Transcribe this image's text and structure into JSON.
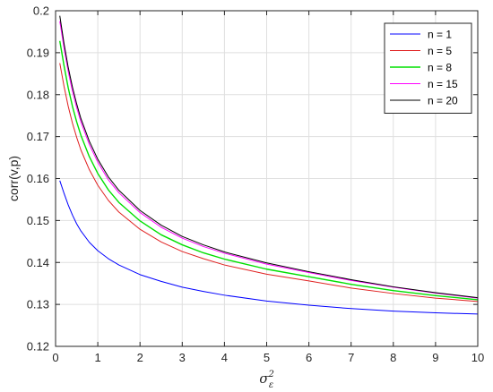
{
  "chart_data": {
    "type": "line",
    "xlabel": "σ",
    "xlabel_superscript": "2",
    "xlabel_subscript": "ε",
    "ylabel": "corr(v,p)",
    "xlim": [
      0,
      10
    ],
    "ylim": [
      0.12,
      0.2
    ],
    "x_ticks": [
      "0",
      "1",
      "2",
      "3",
      "4",
      "5",
      "6",
      "7",
      "8",
      "9",
      "10"
    ],
    "y_ticks": [
      "0.12",
      "0.13",
      "0.14",
      "0.15",
      "0.16",
      "0.17",
      "0.18",
      "0.19",
      "0.2"
    ],
    "grid": true,
    "legend_position": "top-right",
    "series": [
      {
        "name": "n = 1",
        "color": "#0000ff",
        "line_width": 1,
        "x": [
          0.1,
          0.2,
          0.3,
          0.4,
          0.5,
          0.6,
          0.8,
          1.0,
          1.25,
          1.5,
          2,
          2.5,
          3,
          3.5,
          4,
          5,
          6,
          7,
          8,
          9,
          10
        ],
        "y": [
          0.1595,
          0.1565,
          0.1537,
          0.1513,
          0.1492,
          0.1475,
          0.1448,
          0.1428,
          0.1409,
          0.1394,
          0.1371,
          0.1355,
          0.1341,
          0.1331,
          0.1322,
          0.1308,
          0.1298,
          0.129,
          0.1284,
          0.128,
          0.1277
        ]
      },
      {
        "name": "n = 5",
        "color": "#e02020",
        "line_width": 1,
        "x": [
          0.1,
          0.2,
          0.3,
          0.4,
          0.5,
          0.6,
          0.8,
          1.0,
          1.25,
          1.5,
          2,
          2.5,
          3,
          3.5,
          4,
          5,
          6,
          7,
          8,
          9,
          10
        ],
        "y": [
          0.1875,
          0.182,
          0.1772,
          0.1732,
          0.1698,
          0.1668,
          0.1621,
          0.1584,
          0.1548,
          0.152,
          0.1479,
          0.1449,
          0.1426,
          0.1409,
          0.1394,
          0.1372,
          0.1356,
          0.1339,
          0.1326,
          0.1315,
          0.1307
        ]
      },
      {
        "name": "n = 8",
        "color": "#00e000",
        "line_width": 1.4,
        "x": [
          0.1,
          0.2,
          0.3,
          0.4,
          0.5,
          0.6,
          0.8,
          1.0,
          1.25,
          1.5,
          2,
          2.5,
          3,
          3.5,
          4,
          5,
          6,
          7,
          8,
          9,
          10
        ],
        "y": [
          0.1928,
          0.1869,
          0.1816,
          0.1772,
          0.1735,
          0.1703,
          0.1652,
          0.1612,
          0.1573,
          0.1543,
          0.1499,
          0.1466,
          0.1442,
          0.1423,
          0.1408,
          0.1384,
          0.1366,
          0.1348,
          0.1333,
          0.1321,
          0.1311
        ]
      },
      {
        "name": "n = 15",
        "color": "#ff00ff",
        "line_width": 1,
        "x": [
          0.1,
          0.2,
          0.3,
          0.4,
          0.5,
          0.6,
          0.8,
          1.0,
          1.25,
          1.5,
          2,
          2.5,
          3,
          3.5,
          4,
          5,
          6,
          7,
          8,
          9,
          10
        ],
        "y": [
          0.1975,
          0.1911,
          0.1855,
          0.1808,
          0.1769,
          0.1735,
          0.1681,
          0.1639,
          0.1597,
          0.1566,
          0.1519,
          0.1484,
          0.1458,
          0.1438,
          0.1422,
          0.1396,
          0.1376,
          0.1357,
          0.1341,
          0.1327,
          0.1315
        ]
      },
      {
        "name": "n = 20",
        "color": "#000000",
        "line_width": 1,
        "x": [
          0.1,
          0.2,
          0.3,
          0.4,
          0.5,
          0.6,
          0.8,
          1.0,
          1.25,
          1.5,
          2,
          2.5,
          3,
          3.5,
          4,
          5,
          6,
          7,
          8,
          9,
          10
        ],
        "y": [
          0.1988,
          0.1922,
          0.1865,
          0.1818,
          0.1778,
          0.1743,
          0.1689,
          0.1646,
          0.1604,
          0.1572,
          0.1524,
          0.1489,
          0.1462,
          0.1442,
          0.1425,
          0.1399,
          0.1378,
          0.1359,
          0.1342,
          0.1328,
          0.1316
        ]
      }
    ]
  }
}
